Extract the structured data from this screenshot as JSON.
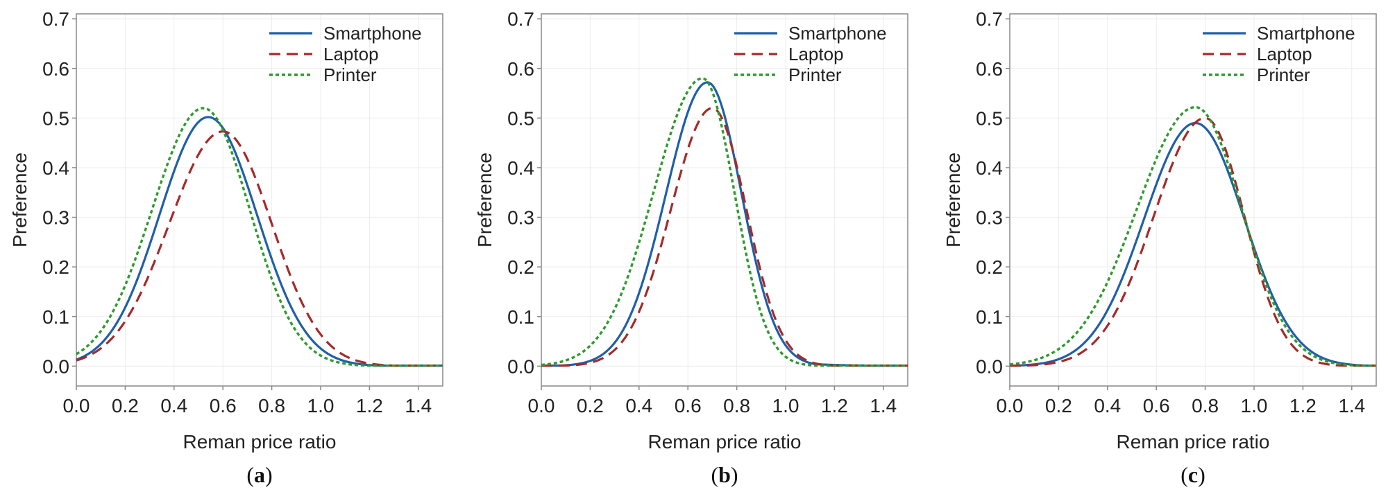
{
  "colors": {
    "Smartphone": "#1f5fa8",
    "Laptop": "#a52a2a",
    "Printer": "#2e9a2e",
    "grid": "#ececec",
    "frame": "#888888"
  },
  "chart_data": [
    {
      "type": "line",
      "panel_label_prefix": "(",
      "panel_label": "a",
      "panel_label_suffix": ")",
      "xlabel": "Reman price ratio",
      "ylabel": "Preference",
      "xlim": [
        0,
        1.5
      ],
      "ylim": [
        -0.04,
        0.71
      ],
      "xticks": [
        "0.0",
        "0.2",
        "0.4",
        "0.6",
        "0.8",
        "1.0",
        "1.2",
        "1.4"
      ],
      "yticks": [
        "0.0",
        "0.1",
        "0.2",
        "0.3",
        "0.4",
        "0.5",
        "0.6",
        "0.7"
      ],
      "legend_position": "top-right",
      "series": [
        {
          "name": "Smartphone",
          "style": "solid",
          "peak_x": 0.54,
          "peak_y": 0.502,
          "sigma_left": 0.2,
          "sigma_right": 0.2,
          "tail": 0
        },
        {
          "name": "Laptop",
          "style": "dashed",
          "peak_x": 0.6,
          "peak_y": 0.473,
          "sigma_left": 0.22,
          "sigma_right": 0.2,
          "tail": 0
        },
        {
          "name": "Printer",
          "style": "dotted",
          "peak_x": 0.52,
          "peak_y": 0.52,
          "sigma_left": 0.21,
          "sigma_right": 0.19,
          "tail": 0
        }
      ]
    },
    {
      "type": "line",
      "panel_label_prefix": "(",
      "panel_label": "b",
      "panel_label_suffix": ")",
      "xlabel": "Reman price ratio",
      "ylabel": "Preference",
      "xlim": [
        0,
        1.5
      ],
      "ylim": [
        -0.04,
        0.71
      ],
      "xticks": [
        "0.0",
        "0.2",
        "0.4",
        "0.6",
        "0.8",
        "1.0",
        "1.2",
        "1.4"
      ],
      "yticks": [
        "0.0",
        "0.1",
        "0.2",
        "0.3",
        "0.4",
        "0.5",
        "0.6",
        "0.7"
      ],
      "legend_position": "top-right",
      "series": [
        {
          "name": "Smartphone",
          "style": "solid",
          "peak_x": 0.68,
          "peak_y": 0.572,
          "sigma_left": 0.17,
          "sigma_right": 0.14,
          "tail": 1
        },
        {
          "name": "Laptop",
          "style": "dashed",
          "peak_x": 0.7,
          "peak_y": 0.52,
          "sigma_left": 0.17,
          "sigma_right": 0.14,
          "tail": 0
        },
        {
          "name": "Printer",
          "style": "dotted",
          "peak_x": 0.66,
          "peak_y": 0.58,
          "sigma_left": 0.2,
          "sigma_right": 0.13,
          "tail": 0
        }
      ]
    },
    {
      "type": "line",
      "panel_label_prefix": "(",
      "panel_label": "c",
      "panel_label_suffix": ")",
      "xlabel": "Reman price ratio",
      "ylabel": "Preference",
      "xlim": [
        0,
        1.5
      ],
      "ylim": [
        -0.04,
        0.71
      ],
      "xticks": [
        "0.0",
        "0.2",
        "0.4",
        "0.6",
        "0.8",
        "1.0",
        "1.2",
        "1.4"
      ],
      "yticks": [
        "0.0",
        "0.1",
        "0.2",
        "0.3",
        "0.4",
        "0.5",
        "0.6",
        "0.7"
      ],
      "legend_position": "top-right",
      "series": [
        {
          "name": "Smartphone",
          "style": "solid",
          "peak_x": 0.76,
          "peak_y": 0.49,
          "sigma_left": 0.21,
          "sigma_right": 0.2,
          "tail": 1
        },
        {
          "name": "Laptop",
          "style": "dashed",
          "peak_x": 0.8,
          "peak_y": 0.5,
          "sigma_left": 0.21,
          "sigma_right": 0.16,
          "tail": 0
        },
        {
          "name": "Printer",
          "style": "dotted",
          "peak_x": 0.76,
          "peak_y": 0.522,
          "sigma_left": 0.24,
          "sigma_right": 0.19,
          "tail": 1
        }
      ]
    }
  ]
}
